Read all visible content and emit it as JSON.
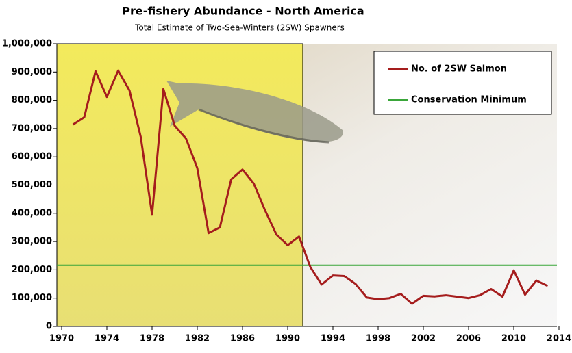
{
  "chart_data": {
    "type": "line",
    "title": "Pre-fishery Abundance - North America",
    "subtitle": "Total Estimate of Two-Sea-Winters (2SW) Spawners",
    "x": [
      1971,
      1972,
      1973,
      1974,
      1975,
      1976,
      1977,
      1978,
      1979,
      1980,
      1981,
      1982,
      1983,
      1984,
      1985,
      1986,
      1987,
      1988,
      1989,
      1990,
      1991,
      1992,
      1993,
      1994,
      1995,
      1996,
      1997,
      1998,
      1999,
      2000,
      2001,
      2002,
      2003,
      2004,
      2005,
      2006,
      2007,
      2008,
      2009,
      2010,
      2011,
      2012,
      2013
    ],
    "series": [
      {
        "name": "No. of 2SW Salmon",
        "color": "#a51d1d",
        "values": [
          714000,
          740000,
          903000,
          812000,
          905000,
          835000,
          670000,
          395000,
          840000,
          710000,
          665000,
          560000,
          330000,
          350000,
          520000,
          555000,
          505000,
          410000,
          325000,
          287000,
          318000,
          210000,
          148000,
          180000,
          178000,
          150000,
          102000,
          96000,
          100000,
          115000,
          80000,
          108000,
          106000,
          110000,
          105000,
          100000,
          110000,
          132000,
          105000,
          198000,
          112000,
          162000,
          143000
        ]
      }
    ],
    "reference_line": {
      "name": "Conservation Minimum",
      "value": 216000,
      "color": "#3aa63a"
    },
    "xlim": [
      1970,
      2014
    ],
    "xticks": [
      1970,
      1974,
      1978,
      1982,
      1986,
      1990,
      1994,
      1998,
      2002,
      2006,
      2010,
      2014
    ],
    "ylim": [
      0,
      1000000
    ],
    "yticks": [
      {
        "value": 0,
        "label": "0"
      },
      {
        "value": 100000,
        "label": "100,000"
      },
      {
        "value": 200000,
        "label": "200,000"
      },
      {
        "value": 300000,
        "label": "300,000"
      },
      {
        "value": 400000,
        "label": "400,000"
      },
      {
        "value": 500000,
        "label": "500,000"
      },
      {
        "value": 600000,
        "label": "600,000"
      },
      {
        "value": 700000,
        "label": "700,000"
      },
      {
        "value": 800000,
        "label": "800,000"
      },
      {
        "value": 900000,
        "label": "900,000"
      },
      {
        "value": 1000000,
        "label": "1,000,000"
      }
    ],
    "legend": "upper right"
  }
}
